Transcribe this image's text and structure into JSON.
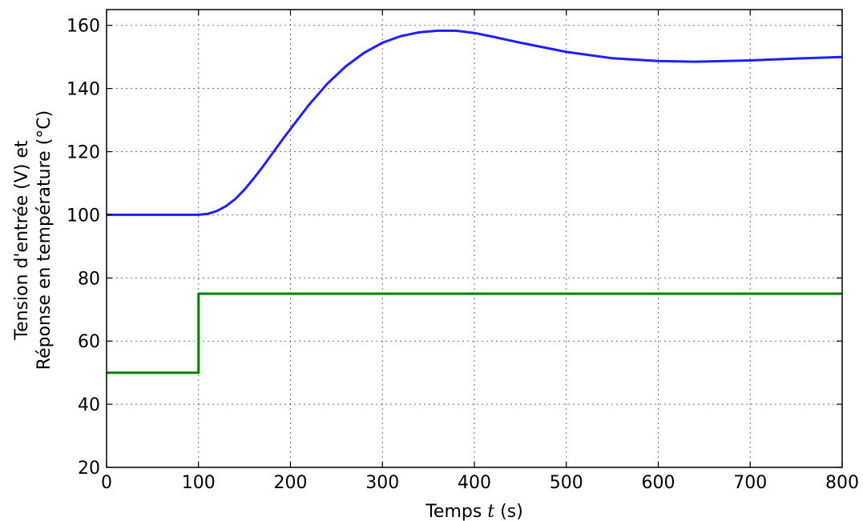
{
  "chart_data": {
    "type": "line",
    "xlabel": "Temps t (s)",
    "ylabel": [
      "Tension d'entrée (V) et",
      "Réponse en température (°C)"
    ],
    "xlim": [
      0,
      800
    ],
    "ylim": [
      20,
      165
    ],
    "xticks": [
      0,
      100,
      200,
      300,
      400,
      500,
      600,
      700,
      800
    ],
    "yticks": [
      20,
      40,
      60,
      80,
      100,
      120,
      140,
      160
    ],
    "grid": true,
    "series": [
      {
        "color": "#1f1fff",
        "x": [
          0,
          100,
          110,
          120,
          130,
          140,
          150,
          160,
          170,
          180,
          190,
          200,
          220,
          240,
          260,
          280,
          300,
          320,
          340,
          360,
          380,
          400,
          420,
          450,
          500,
          550,
          600,
          640,
          700,
          750,
          800
        ],
        "y": [
          100,
          100,
          100.3,
          101.2,
          102.8,
          105,
          108,
          111.5,
          115.3,
          119.3,
          123.3,
          127.2,
          134.8,
          141.5,
          147,
          151.3,
          154.5,
          156.6,
          157.8,
          158.3,
          158.3,
          157.6,
          156.4,
          154.5,
          151.6,
          149.6,
          148.7,
          148.5,
          148.9,
          149.5,
          150
        ]
      },
      {
        "color": "#008000",
        "x": [
          0,
          100,
          100,
          800
        ],
        "y": [
          50,
          50,
          75,
          75
        ]
      }
    ]
  }
}
